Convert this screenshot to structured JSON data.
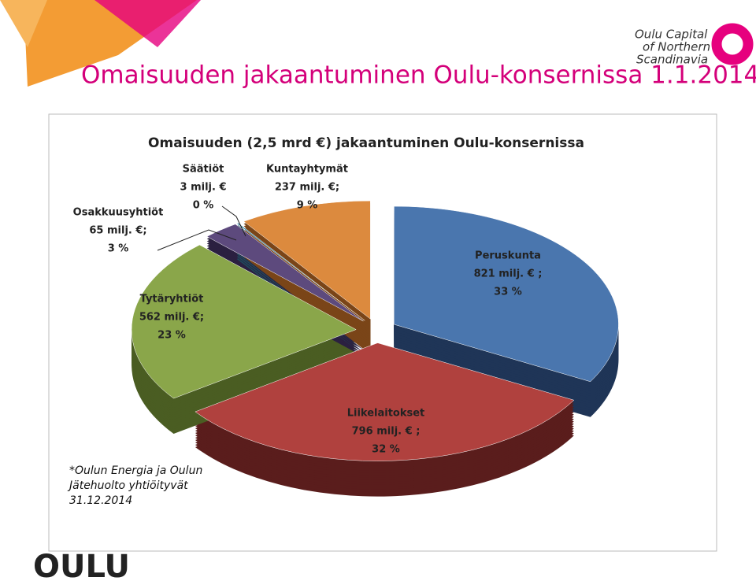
{
  "slide": {
    "title": "Omaisuuden jakaantuminen Oulu-konsernissa 1.1.2014",
    "logo_lines": [
      "Oulu Capital",
      "of Northern",
      "Scandinavia"
    ],
    "footnote": [
      "*Oulun Energia ja  Oulun",
      "Jätehuolto yhtiöityvät",
      "31.12.2014"
    ],
    "brand": "OULU"
  },
  "chart_data": {
    "type": "pie",
    "title": "Omaisuuden (2,5 mrd €) jakaantuminen Oulu-konsernissa",
    "categories": [
      "Peruskunta",
      "Liikelaitokset",
      "Tytäryhtiöt",
      "Osakkuusyhtiöt",
      "Säätiöt",
      "Kuntayhtymät"
    ],
    "values": [
      821,
      796,
      562,
      65,
      3,
      237
    ],
    "value_labels": [
      "821 milj. € ;",
      "796 milj. € ;",
      "562 milj. €;",
      "65 milj. €;",
      "3 milj. €",
      "237 milj. €;"
    ],
    "percents": [
      33,
      32,
      23,
      3,
      0,
      9
    ],
    "percent_labels": [
      "33 %",
      "32 %",
      "23 %",
      "3 %",
      "0 %",
      "9 %"
    ],
    "colors": [
      "#4a76ae",
      "#b0413e",
      "#8aa64a",
      "#5d4a7d",
      "#3a86a6",
      "#dc8a3e"
    ],
    "side_colors": [
      "#1f3557",
      "#5a1d1c",
      "#4a5d22",
      "#2b2040",
      "#1f4a5c",
      "#7a4518"
    ]
  }
}
